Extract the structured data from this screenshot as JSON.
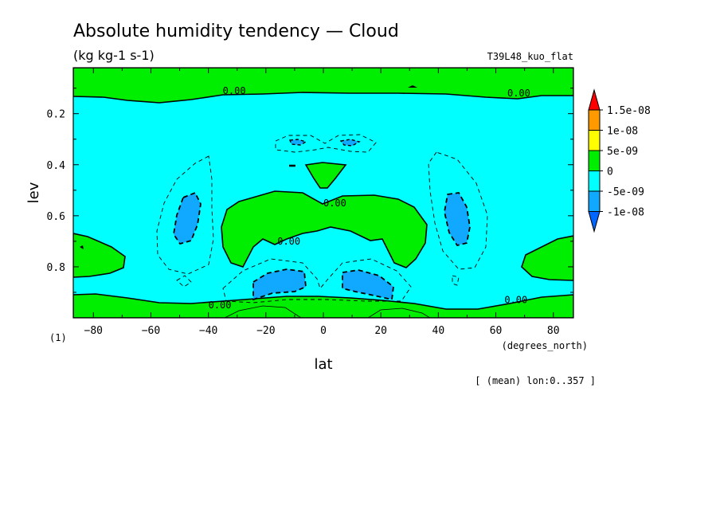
{
  "chart_data": {
    "type": "contour",
    "title": "Absolute humidity tendency — Cloud",
    "subtitle": "(kg kg-1 s-1)",
    "run_label": "T39L48_kuo_flat",
    "xlabel": "lat",
    "x_units": "(degrees_north)",
    "ylabel": "lev",
    "y_units": "(1)",
    "footnote": "[ (mean) lon:0..357 ]",
    "xlim": [
      -87,
      87
    ],
    "ylim": [
      1.0,
      0.02
    ],
    "x_ticks": [
      -80,
      -60,
      -40,
      -20,
      0,
      20,
      40,
      60,
      80
    ],
    "y_ticks": [
      0.2,
      0.4,
      0.6,
      0.8
    ],
    "x_tick_labels": [
      "−80",
      "−60",
      "−40",
      "−20",
      "0",
      "20",
      "40",
      "60",
      "80"
    ],
    "y_tick_labels": [
      "0.2",
      "0.4",
      "0.6",
      "0.8"
    ],
    "contour_labels": [
      {
        "text": "0.00",
        "lat": -31,
        "lev": 0.11
      },
      {
        "text": "0.00",
        "lat": 68,
        "lev": 0.12
      },
      {
        "text": "0.00",
        "lat": 4,
        "lev": 0.55
      },
      {
        "text": "0.00",
        "lat": -12,
        "lev": 0.7
      },
      {
        "text": "0.00",
        "lat": -36,
        "lev": 0.95
      },
      {
        "text": "0.00",
        "lat": 67,
        "lev": 0.93
      }
    ],
    "legend": {
      "placement": "right",
      "levels": [
        "1.5e-08",
        "1e-08",
        "5e-09",
        "0",
        "-5e-09",
        "-1e-08"
      ],
      "colors": [
        "#ff0000",
        "#ff9900",
        "#ffff00",
        "#00ee00",
        "#00ffff",
        "#11a8ff",
        "#0066ff"
      ]
    },
    "fill_colors": {
      "positive": "#00ee00",
      "near_zero_negative": "#00ffff",
      "negative": "#11a8ff"
    }
  }
}
